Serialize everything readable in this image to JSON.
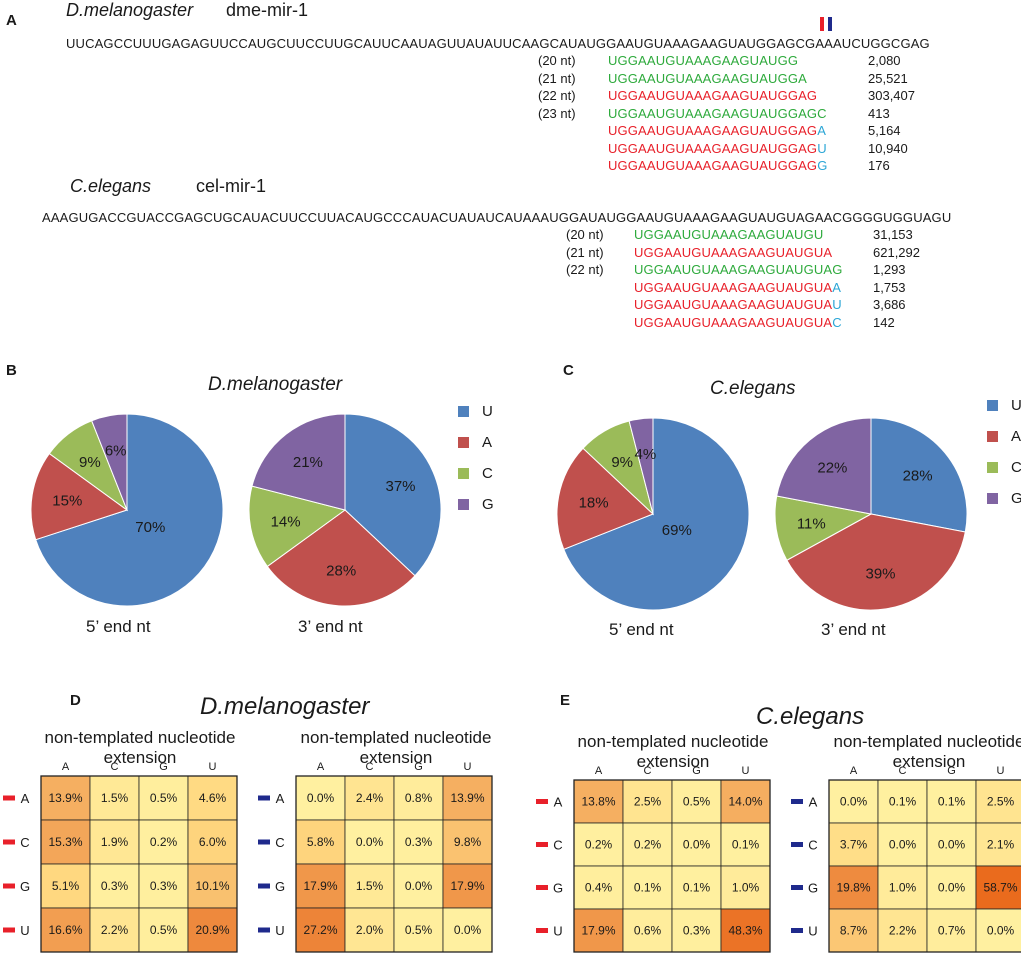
{
  "panelA": {
    "label": "A",
    "fly": {
      "species": "D.melanogaster",
      "mirna": "dme-mir-1",
      "sequence": "UUCAGCCUUUGAGAGUUCCAUGCUUCCUUGCAUUCAAUAGUUAUAUUCAAGCAUAUGGAAUGUAAAGAAGUAUGGAGCGAAAUCUGGCGAG",
      "reads": [
        {
          "len": "(20 nt)",
          "core": "UGGAAUGUAAAGAAGUAUGG",
          "tail": "",
          "color": "green",
          "count": "2,080"
        },
        {
          "len": "(21 nt)",
          "core": "UGGAAUGUAAAGAAGUAUGGA",
          "tail": "",
          "color": "green",
          "count": "25,521"
        },
        {
          "len": "(22 nt)",
          "core": "UGGAAUGUAAAGAAGUAUGGAG",
          "tail": "",
          "color": "red",
          "count": "303,407"
        },
        {
          "len": "(23 nt)",
          "core": "UGGAAUGUAAAGAAGUAUGGAGC",
          "tail": "",
          "color": "green",
          "count": "413"
        },
        {
          "len": "",
          "core": "UGGAAUGUAAAGAAGUAUGGAG",
          "tail": "A",
          "color": "red",
          "count": "5,164"
        },
        {
          "len": "",
          "core": "UGGAAUGUAAAGAAGUAUGGAG",
          "tail": "U",
          "color": "red",
          "count": "10,940"
        },
        {
          "len": "",
          "core": "UGGAAUGUAAAGAAGUAUGGAG",
          "tail": "G",
          "color": "red",
          "count": "176"
        }
      ]
    },
    "worm": {
      "species": "C.elegans",
      "mirna": "cel-mir-1",
      "sequence": "AAAGUGACCGUACCGAGCUGCAUACUUCCUUACAUGCCCAUACUAUAUCAUAAAUGGAUAUGGAAUGUAAAGAAGUAUGUAGAACGGGGUGGUAGU",
      "reads": [
        {
          "len": "(20 nt)",
          "core": "UGGAAUGUAAAGAAGUAUGU",
          "tail": "",
          "color": "green",
          "count": "31,153"
        },
        {
          "len": "(21 nt)",
          "core": "UGGAAUGUAAAGAAGUAUGUA",
          "tail": "",
          "color": "red",
          "count": "621,292"
        },
        {
          "len": "(22 nt)",
          "core": "UGGAAUGUAAAGAAGUAUGUAG",
          "tail": "",
          "color": "green",
          "count": "1,293"
        },
        {
          "len": "",
          "core": "UGGAAUGUAAAGAAGUAUGUA",
          "tail": "A",
          "color": "red",
          "count": "1,753"
        },
        {
          "len": "",
          "core": "UGGAAUGUAAAGAAGUAUGUA",
          "tail": "U",
          "color": "red",
          "count": "3,686"
        },
        {
          "len": "",
          "core": "UGGAAUGUAAAGAAGUAUGUA",
          "tail": "C",
          "color": "red",
          "count": "142"
        }
      ]
    }
  },
  "colors": {
    "U": "#4f81bd",
    "A": "#c0504d",
    "C": "#9bbb59",
    "G": "#8064a2",
    "read_red": "#e8202a",
    "read_green": "#2eaa3c",
    "tail_cyan": "#2ba6d6",
    "marker_red": "#e8202a",
    "marker_blue": "#1f2a8c"
  },
  "chart_data": [
    {
      "type": "pie",
      "panel": "B",
      "title": "D.melanogaster",
      "xlabel": "5’ end nt",
      "categories": [
        "U",
        "A",
        "C",
        "G"
      ],
      "values": [
        70,
        15,
        9,
        6
      ],
      "labels": [
        "70%",
        "15%",
        "9%",
        "6%"
      ]
    },
    {
      "type": "pie",
      "panel": "B",
      "title": "D.melanogaster",
      "xlabel": "3’ end nt",
      "categories": [
        "U",
        "A",
        "C",
        "G"
      ],
      "values": [
        37,
        28,
        14,
        21
      ],
      "labels": [
        "37%",
        "28%",
        "14%",
        "21%"
      ]
    },
    {
      "type": "pie",
      "panel": "C",
      "title": "C.elegans",
      "xlabel": "5’ end nt",
      "categories": [
        "U",
        "A",
        "C",
        "G"
      ],
      "values": [
        69,
        18,
        9,
        4
      ],
      "labels": [
        "69%",
        "18%",
        "9%",
        "4%"
      ]
    },
    {
      "type": "pie",
      "panel": "C",
      "title": "C.elegans",
      "xlabel": "3’ end nt",
      "categories": [
        "U",
        "A",
        "C",
        "G"
      ],
      "values": [
        28,
        39,
        11,
        22
      ],
      "labels": [
        "28%",
        "39%",
        "11%",
        "22%"
      ]
    },
    {
      "type": "heatmap",
      "panel": "D",
      "species": "D.melanogaster",
      "title": "non-templated nucleotide extension",
      "position": "red",
      "cols": [
        "A",
        "C",
        "G",
        "U"
      ],
      "rows": [
        "A",
        "C",
        "G",
        "U"
      ],
      "values": [
        [
          13.9,
          1.5,
          0.5,
          4.6
        ],
        [
          15.3,
          1.9,
          0.2,
          6.0
        ],
        [
          5.1,
          0.3,
          0.3,
          10.1
        ],
        [
          16.6,
          2.2,
          0.5,
          20.9
        ]
      ],
      "labels": [
        [
          "13.9%",
          "1.5%",
          "0.5%",
          "4.6%"
        ],
        [
          "15.3%",
          "1.9%",
          "0.2%",
          "6.0%"
        ],
        [
          "5.1%",
          "0.3%",
          "0.3%",
          "10.1%"
        ],
        [
          "16.6%",
          "2.2%",
          "0.5%",
          "20.9%"
        ]
      ]
    },
    {
      "type": "heatmap",
      "panel": "D",
      "species": "D.melanogaster",
      "title": "non-templated nucleotide extension",
      "position": "blue",
      "cols": [
        "A",
        "C",
        "G",
        "U"
      ],
      "rows": [
        "A",
        "C",
        "G",
        "U"
      ],
      "values": [
        [
          0.0,
          2.4,
          0.8,
          13.9
        ],
        [
          5.8,
          0.0,
          0.3,
          9.8
        ],
        [
          17.9,
          1.5,
          0.0,
          17.9
        ],
        [
          27.2,
          2.0,
          0.5,
          0.0
        ]
      ],
      "labels": [
        [
          "0.0%",
          "2.4%",
          "0.8%",
          "13.9%"
        ],
        [
          "5.8%",
          "0.0%",
          "0.3%",
          "9.8%"
        ],
        [
          "17.9%",
          "1.5%",
          "0.0%",
          "17.9%"
        ],
        [
          "27.2%",
          "2.0%",
          "0.5%",
          "0.0%"
        ]
      ]
    },
    {
      "type": "heatmap",
      "panel": "E",
      "species": "C.elegans",
      "title": "non-templated nucleotide extension",
      "position": "red",
      "cols": [
        "A",
        "C",
        "G",
        "U"
      ],
      "rows": [
        "A",
        "C",
        "G",
        "U"
      ],
      "values": [
        [
          13.8,
          2.5,
          0.5,
          14.0
        ],
        [
          0.2,
          0.2,
          0.0,
          0.1
        ],
        [
          0.4,
          0.1,
          0.1,
          1.0
        ],
        [
          17.9,
          0.6,
          0.3,
          48.3
        ]
      ],
      "labels": [
        [
          "13.8%",
          "2.5%",
          "0.5%",
          "14.0%"
        ],
        [
          "0.2%",
          "0.2%",
          "0.0%",
          "0.1%"
        ],
        [
          "0.4%",
          "0.1%",
          "0.1%",
          "1.0%"
        ],
        [
          "17.9%",
          "0.6%",
          "0.3%",
          "48.3%"
        ]
      ]
    },
    {
      "type": "heatmap",
      "panel": "E",
      "species": "C.elegans",
      "title": "non-templated nucleotide extension",
      "position": "blue",
      "cols": [
        "A",
        "C",
        "G",
        "U"
      ],
      "rows": [
        "A",
        "C",
        "G",
        "U"
      ],
      "values": [
        [
          0.0,
          0.1,
          0.1,
          2.5
        ],
        [
          3.7,
          0.0,
          0.0,
          2.1
        ],
        [
          19.8,
          1.0,
          0.0,
          58.7
        ],
        [
          8.7,
          2.2,
          0.7,
          0.0
        ]
      ],
      "labels": [
        [
          "0.0%",
          "0.1%",
          "0.1%",
          "2.5%"
        ],
        [
          "3.7%",
          "0.0%",
          "0.0%",
          "2.1%"
        ],
        [
          "19.8%",
          "1.0%",
          "0.0%",
          "58.7%"
        ],
        [
          "8.7%",
          "2.2%",
          "0.7%",
          "0.0%"
        ]
      ]
    }
  ],
  "panelB": {
    "label": "B",
    "species": "D.melanogaster"
  },
  "panelC": {
    "label": "C",
    "species": "C.elegans"
  },
  "panelD": {
    "label": "D",
    "species": "D.melanogaster"
  },
  "panelE": {
    "label": "E",
    "species": "C.elegans"
  },
  "legend": [
    "U",
    "A",
    "C",
    "G"
  ]
}
